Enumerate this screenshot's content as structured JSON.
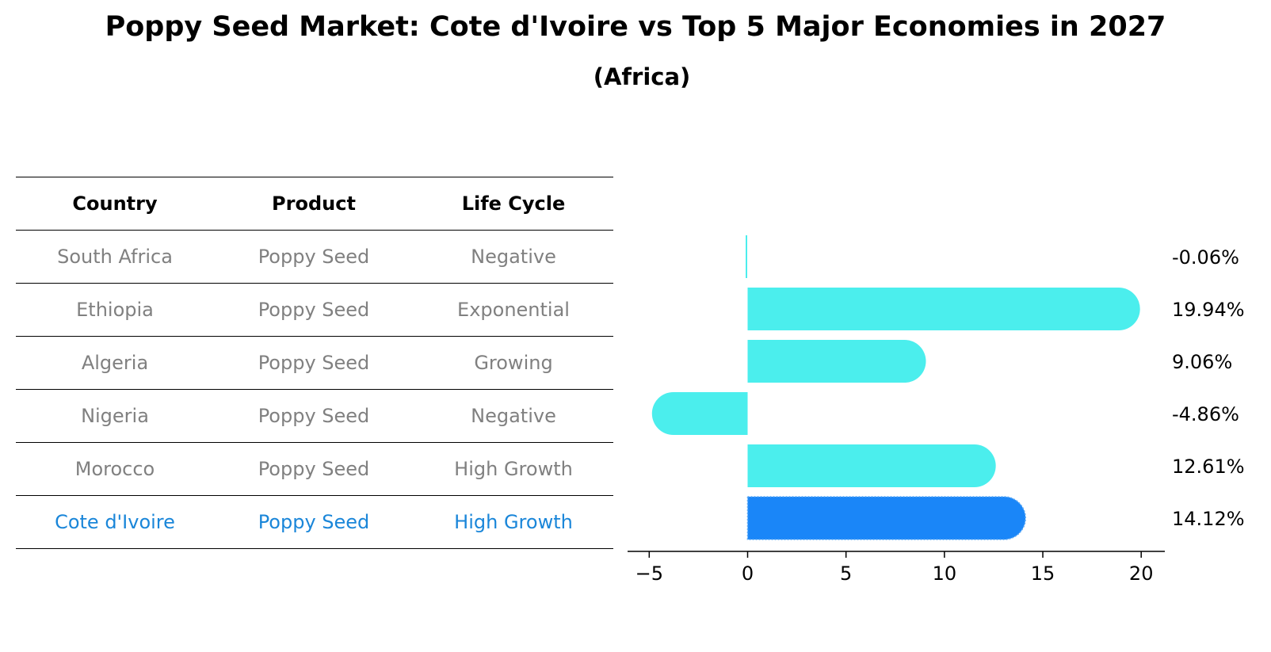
{
  "title": "Poppy Seed Market: Cote d'Ivoire vs Top 5 Major Economies in 2027",
  "subtitle": "(Africa)",
  "table": {
    "headers": [
      "Country",
      "Product",
      "Life Cycle"
    ],
    "rows": [
      {
        "country": "South Africa",
        "product": "Poppy Seed",
        "life_cycle": "Negative"
      },
      {
        "country": "Ethiopia",
        "product": "Poppy Seed",
        "life_cycle": "Exponential"
      },
      {
        "country": "Algeria",
        "product": "Poppy Seed",
        "life_cycle": "Growing"
      },
      {
        "country": "Nigeria",
        "product": "Poppy Seed",
        "life_cycle": "Negative"
      },
      {
        "country": "Morocco",
        "product": "Poppy Seed",
        "life_cycle": "High Growth"
      },
      {
        "country": "Cote d'Ivoire",
        "product": "Poppy Seed",
        "life_cycle": "High Growth"
      }
    ]
  },
  "colors": {
    "bar": "#4beeed",
    "highlight": "#1a86f8",
    "text_muted": "#808080",
    "text_highlight": "#1a86d9"
  },
  "chart_data": {
    "type": "bar",
    "orientation": "horizontal",
    "categories": [
      "South Africa",
      "Ethiopia",
      "Algeria",
      "Nigeria",
      "Morocco",
      "Cote d'Ivoire"
    ],
    "values": [
      -0.06,
      19.94,
      9.06,
      -4.86,
      12.61,
      14.12
    ],
    "value_labels": [
      "-0.06%",
      "19.94%",
      "9.06%",
      "-4.86%",
      "12.61%",
      "14.12%"
    ],
    "highlight_category": "Cote d'Ivoire",
    "xlim": [
      -6.1,
      21.2
    ],
    "xticks": [
      -5,
      0,
      5,
      10,
      15,
      20
    ],
    "xtick_labels": [
      "−5",
      "0",
      "5",
      "10",
      "15",
      "20"
    ],
    "xlabel": "",
    "ylabel": ""
  }
}
